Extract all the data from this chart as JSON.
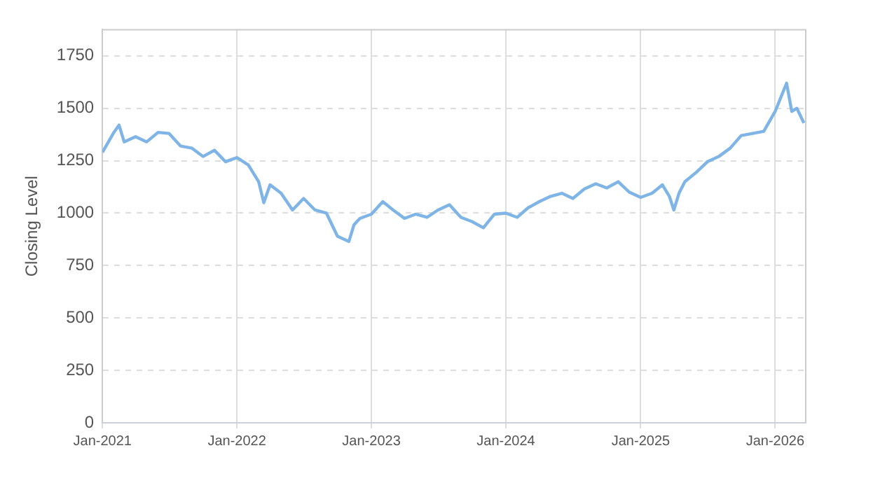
{
  "chart_data": {
    "type": "line",
    "ylabel": "Closing Level",
    "grid": true,
    "legend": false,
    "marker": "none",
    "line_style": "solid",
    "xlim": [
      "2021-01-01",
      "2026-03-25"
    ],
    "xticks": [
      {
        "value": "2021-01-01",
        "label": "Jan-2021"
      },
      {
        "value": "2022-01-01",
        "label": "Jan-2022"
      },
      {
        "value": "2023-01-01",
        "label": "Jan-2023"
      },
      {
        "value": "2024-01-01",
        "label": "Jan-2024"
      },
      {
        "value": "2025-01-01",
        "label": "Jan-2025"
      },
      {
        "value": "2026-01-01",
        "label": "Jan-2026"
      }
    ],
    "ylim": [
      0,
      1875
    ],
    "yticks": [
      0,
      250,
      500,
      750,
      1000,
      1250,
      1500,
      1750
    ],
    "x": [
      "2021-01-01",
      "2021-02-01",
      "2021-02-15",
      "2021-03-01",
      "2021-04-01",
      "2021-05-01",
      "2021-06-01",
      "2021-07-01",
      "2021-08-01",
      "2021-09-01",
      "2021-10-01",
      "2021-11-01",
      "2021-12-01",
      "2022-01-01",
      "2022-02-01",
      "2022-03-01",
      "2022-03-15",
      "2022-04-01",
      "2022-05-01",
      "2022-06-01",
      "2022-07-01",
      "2022-08-01",
      "2022-09-01",
      "2022-10-01",
      "2022-11-01",
      "2022-11-15",
      "2022-12-01",
      "2023-01-01",
      "2023-02-01",
      "2023-03-01",
      "2023-04-01",
      "2023-05-01",
      "2023-06-01",
      "2023-07-01",
      "2023-08-01",
      "2023-09-01",
      "2023-10-01",
      "2023-11-01",
      "2023-12-01",
      "2024-01-01",
      "2024-02-01",
      "2024-03-01",
      "2024-04-01",
      "2024-05-01",
      "2024-06-01",
      "2024-07-01",
      "2024-08-01",
      "2024-09-01",
      "2024-10-01",
      "2024-11-01",
      "2024-12-01",
      "2025-01-01",
      "2025-02-01",
      "2025-03-01",
      "2025-03-20",
      "2025-04-01",
      "2025-04-15",
      "2025-05-01",
      "2025-06-01",
      "2025-07-01",
      "2025-08-01",
      "2025-09-01",
      "2025-10-01",
      "2025-11-01",
      "2025-12-01",
      "2026-01-01",
      "2026-02-01",
      "2026-02-15",
      "2026-03-01",
      "2026-03-20"
    ],
    "series": [
      {
        "color": "#7eb4e6",
        "values": [
          1290,
          1385,
          1420,
          1340,
          1365,
          1340,
          1385,
          1380,
          1320,
          1310,
          1270,
          1300,
          1245,
          1265,
          1230,
          1150,
          1050,
          1135,
          1095,
          1015,
          1070,
          1015,
          1000,
          890,
          865,
          945,
          975,
          995,
          1055,
          1015,
          975,
          995,
          980,
          1015,
          1040,
          980,
          960,
          930,
          995,
          1000,
          980,
          1025,
          1055,
          1080,
          1095,
          1070,
          1115,
          1140,
          1120,
          1150,
          1100,
          1075,
          1095,
          1135,
          1080,
          1015,
          1095,
          1150,
          1195,
          1245,
          1270,
          1310,
          1370,
          1380,
          1390,
          1485,
          1620,
          1485,
          1500,
          1430
        ]
      }
    ]
  }
}
